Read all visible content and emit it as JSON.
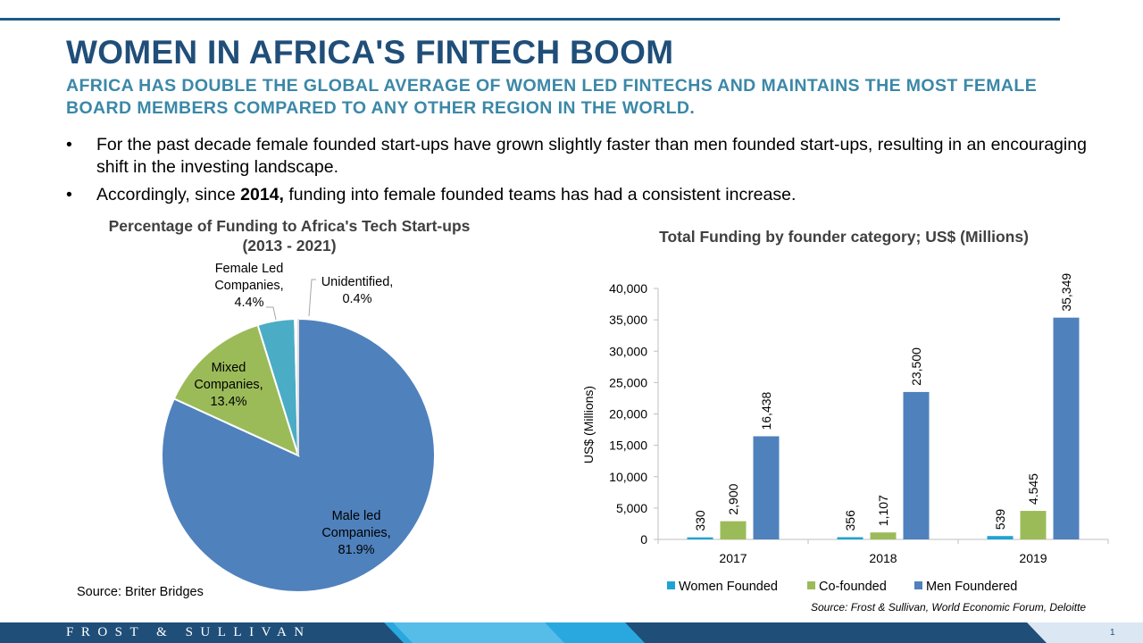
{
  "title": "WOMEN IN AFRICA'S FINTECH BOOM",
  "subtitle": "AFRICA HAS DOUBLE THE GLOBAL AVERAGE OF WOMEN LED FINTECHS AND MAINTAINS THE MOST FEMALE BOARD MEMBERS COMPARED TO ANY OTHER REGION IN THE WORLD.",
  "bullets": {
    "marker": "•",
    "b1": "For the past decade female founded start-ups have grown slightly faster than men founded start-ups, resulting in an encouraging shift in the investing landscape.",
    "b2_pre": "Accordingly, since ",
    "b2_bold": "2014,",
    "b2_post": " funding into female founded teams has had a consistent increase."
  },
  "pie": {
    "title_line1": "Percentage of Funding to Africa's Tech Start-ups",
    "title_line2": "(2013 - 2021)",
    "source": "Source: Briter Bridges"
  },
  "bar": {
    "title": "Total Funding by founder category; US$ (Millions)",
    "source": "Source: Frost & Sullivan, World Economic Forum, Deloitte"
  },
  "footer": {
    "brand": "FROST & SULLIVAN",
    "page": "1"
  },
  "colors": {
    "title": "#1f4e79",
    "subtitle": "#3b88a8",
    "male": "#4f81bd",
    "mixed": "#9bbb59",
    "female": "#4bacc6",
    "unidentified": "#ffffff",
    "women_founded": "#1fa3d4",
    "co_founded": "#9bbb59",
    "men_foundered": "#4f81bd"
  },
  "chart_data": [
    {
      "type": "pie",
      "title": "Percentage of Funding to Africa's Tech Start-ups (2013 - 2021)",
      "slices": [
        {
          "label_lines": [
            "Male led",
            "Companies,",
            "81.9%"
          ],
          "value": 81.9
        },
        {
          "label_lines": [
            "Mixed",
            "Companies,",
            "13.4%"
          ],
          "value": 13.4
        },
        {
          "label_lines": [
            "Female Led",
            "Companies,",
            "4.4%"
          ],
          "value": 4.4
        },
        {
          "label_lines": [
            "Unidentified,",
            "0.4%"
          ],
          "value": 0.4
        }
      ]
    },
    {
      "type": "bar",
      "title": "Total Funding by founder category; US$ (Millions)",
      "categories": [
        "2017",
        "2018",
        "2019"
      ],
      "ylabel": "US$ (Millions)",
      "ylim": [
        0,
        40000
      ],
      "yticks": [
        "0",
        "5,000",
        "10,000",
        "15,000",
        "20,000",
        "25,000",
        "30,000",
        "35,000",
        "40,000"
      ],
      "series": [
        {
          "name": "Women Founded",
          "values": [
            330,
            356,
            539
          ],
          "labels": [
            "330",
            "356",
            "539"
          ]
        },
        {
          "name": "Co-founded",
          "values": [
            2900,
            1107,
            4545
          ],
          "labels": [
            "2,900",
            "1,107",
            "4.545"
          ]
        },
        {
          "name": "Men Foundered",
          "values": [
            16438,
            23500,
            35349
          ],
          "labels": [
            "16,438",
            "23,500",
            "35,349"
          ]
        }
      ],
      "legend": "bottom",
      "grid": false
    }
  ]
}
